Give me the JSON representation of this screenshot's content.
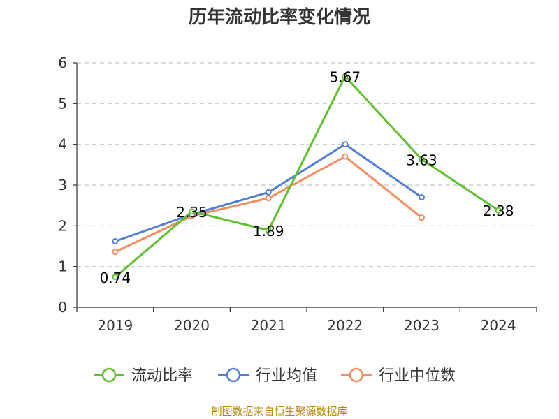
{
  "chart_data": {
    "type": "line",
    "title": "历年流动比率变化情况",
    "categories": [
      "2019",
      "2020",
      "2021",
      "2022",
      "2023",
      "2024"
    ],
    "ylim": [
      0,
      6
    ],
    "yticks": [
      0,
      1,
      2,
      3,
      4,
      5,
      6
    ],
    "grid": true,
    "legend_position": "bottom",
    "series": [
      {
        "name": "流动比率",
        "color": "#5ec12e",
        "values": [
          0.74,
          2.35,
          1.89,
          5.67,
          3.63,
          2.38
        ],
        "show_labels": true,
        "labels": [
          "0.74",
          "2.35",
          "1.89",
          "5.67",
          "3.63",
          "2.38"
        ]
      },
      {
        "name": "行业均值",
        "color": "#4f7fd9",
        "values": [
          1.62,
          2.28,
          2.82,
          4.0,
          2.7,
          null
        ],
        "show_labels": false
      },
      {
        "name": "行业中位数",
        "color": "#f58d5c",
        "values": [
          1.36,
          2.24,
          2.68,
          3.7,
          2.2,
          null
        ],
        "show_labels": false
      }
    ]
  },
  "source": "制图数据来自恒生聚源数据库"
}
